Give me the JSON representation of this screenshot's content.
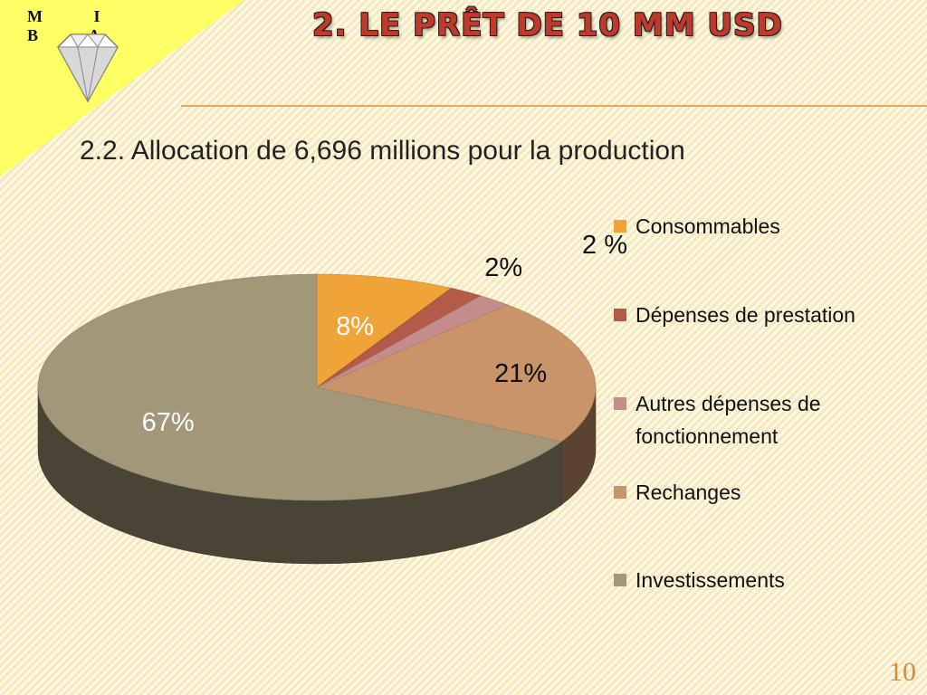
{
  "logo": {
    "letters": "M I B A"
  },
  "slide": {
    "title": "2. LE PRÊT DE 10 MM USD",
    "subtitle": "2.2. Allocation de 6,696 millions pour la production",
    "page_number": "10"
  },
  "chart_data": {
    "type": "pie",
    "title": "",
    "categories": [
      "Consommables",
      "Dépenses de prestation",
      "Autres dépenses de fonctionnement",
      "Rechanges",
      "Investissements"
    ],
    "values": [
      8,
      2,
      2,
      21,
      67
    ],
    "data_labels": [
      "8%",
      "2%",
      "2 %",
      "21%",
      "67%"
    ],
    "colors": [
      "#f0a336",
      "#b35a4b",
      "#c48d8b",
      "#c9946a",
      "#a29879"
    ],
    "legend_position": "right"
  }
}
